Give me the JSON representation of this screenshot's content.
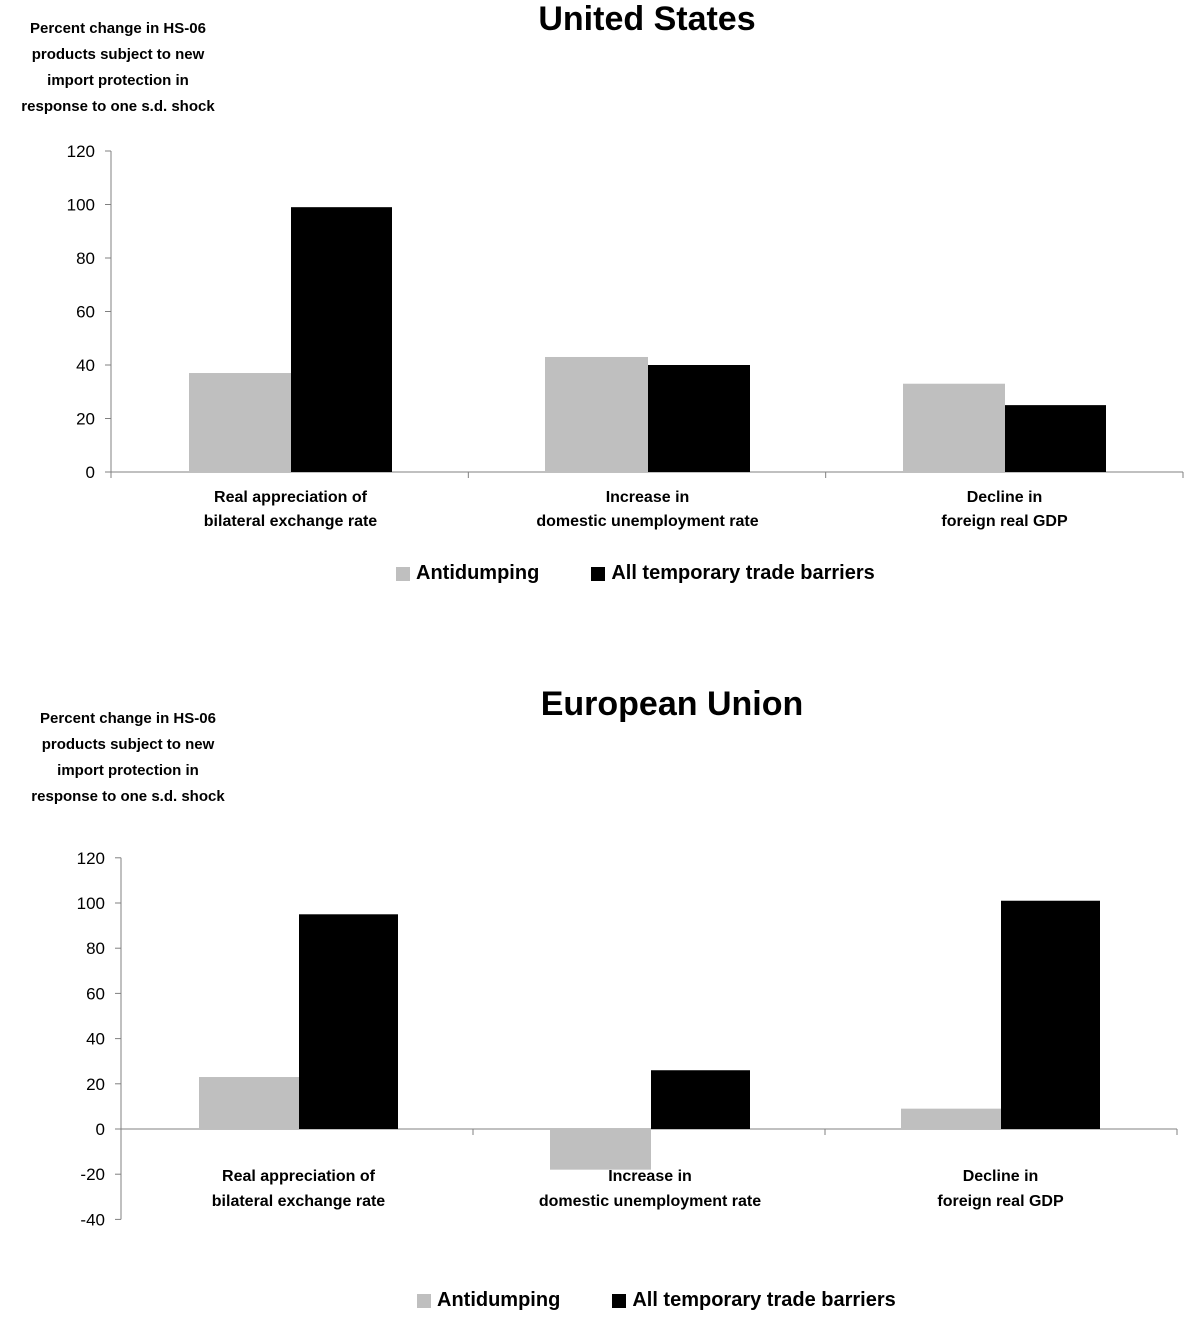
{
  "chart_data": [
    {
      "type": "bar",
      "title": "United States",
      "ylabel": "Percent change in HS-06\nproducts subject to new\nimport protection in\nresponse to one s.d. shock",
      "xlabel": "",
      "categories": [
        "Real appreciation of\nbilateral exchange rate",
        "Increase in\ndomestic unemployment rate",
        "Decline in\nforeign real GDP"
      ],
      "series": [
        {
          "name": "Antidumping",
          "color": "#bfbfbf",
          "values": [
            37,
            43,
            33
          ]
        },
        {
          "name": "All temporary trade barriers",
          "color": "#000000",
          "values": [
            99,
            40,
            25
          ]
        }
      ],
      "ylim": [
        0,
        120
      ],
      "yticks": [
        0,
        20,
        40,
        60,
        80,
        100,
        120
      ],
      "grid": false,
      "legend_position": "bottom"
    },
    {
      "type": "bar",
      "title": "European Union",
      "ylabel": "Percent change in HS-06\nproducts subject to new\nimport protection in\nresponse to one s.d. shock",
      "xlabel": "",
      "categories": [
        "Real appreciation of\nbilateral exchange rate",
        "Increase in\ndomestic unemployment rate",
        "Decline in\nforeign real GDP"
      ],
      "series": [
        {
          "name": "Antidumping",
          "color": "#bfbfbf",
          "values": [
            23,
            -18,
            9
          ]
        },
        {
          "name": "All temporary trade barriers",
          "color": "#000000",
          "values": [
            95,
            26,
            101
          ]
        }
      ],
      "ylim": [
        -40,
        120
      ],
      "yticks": [
        -40,
        -20,
        0,
        20,
        40,
        60,
        80,
        100,
        120
      ],
      "grid": false,
      "legend_position": "bottom"
    }
  ]
}
